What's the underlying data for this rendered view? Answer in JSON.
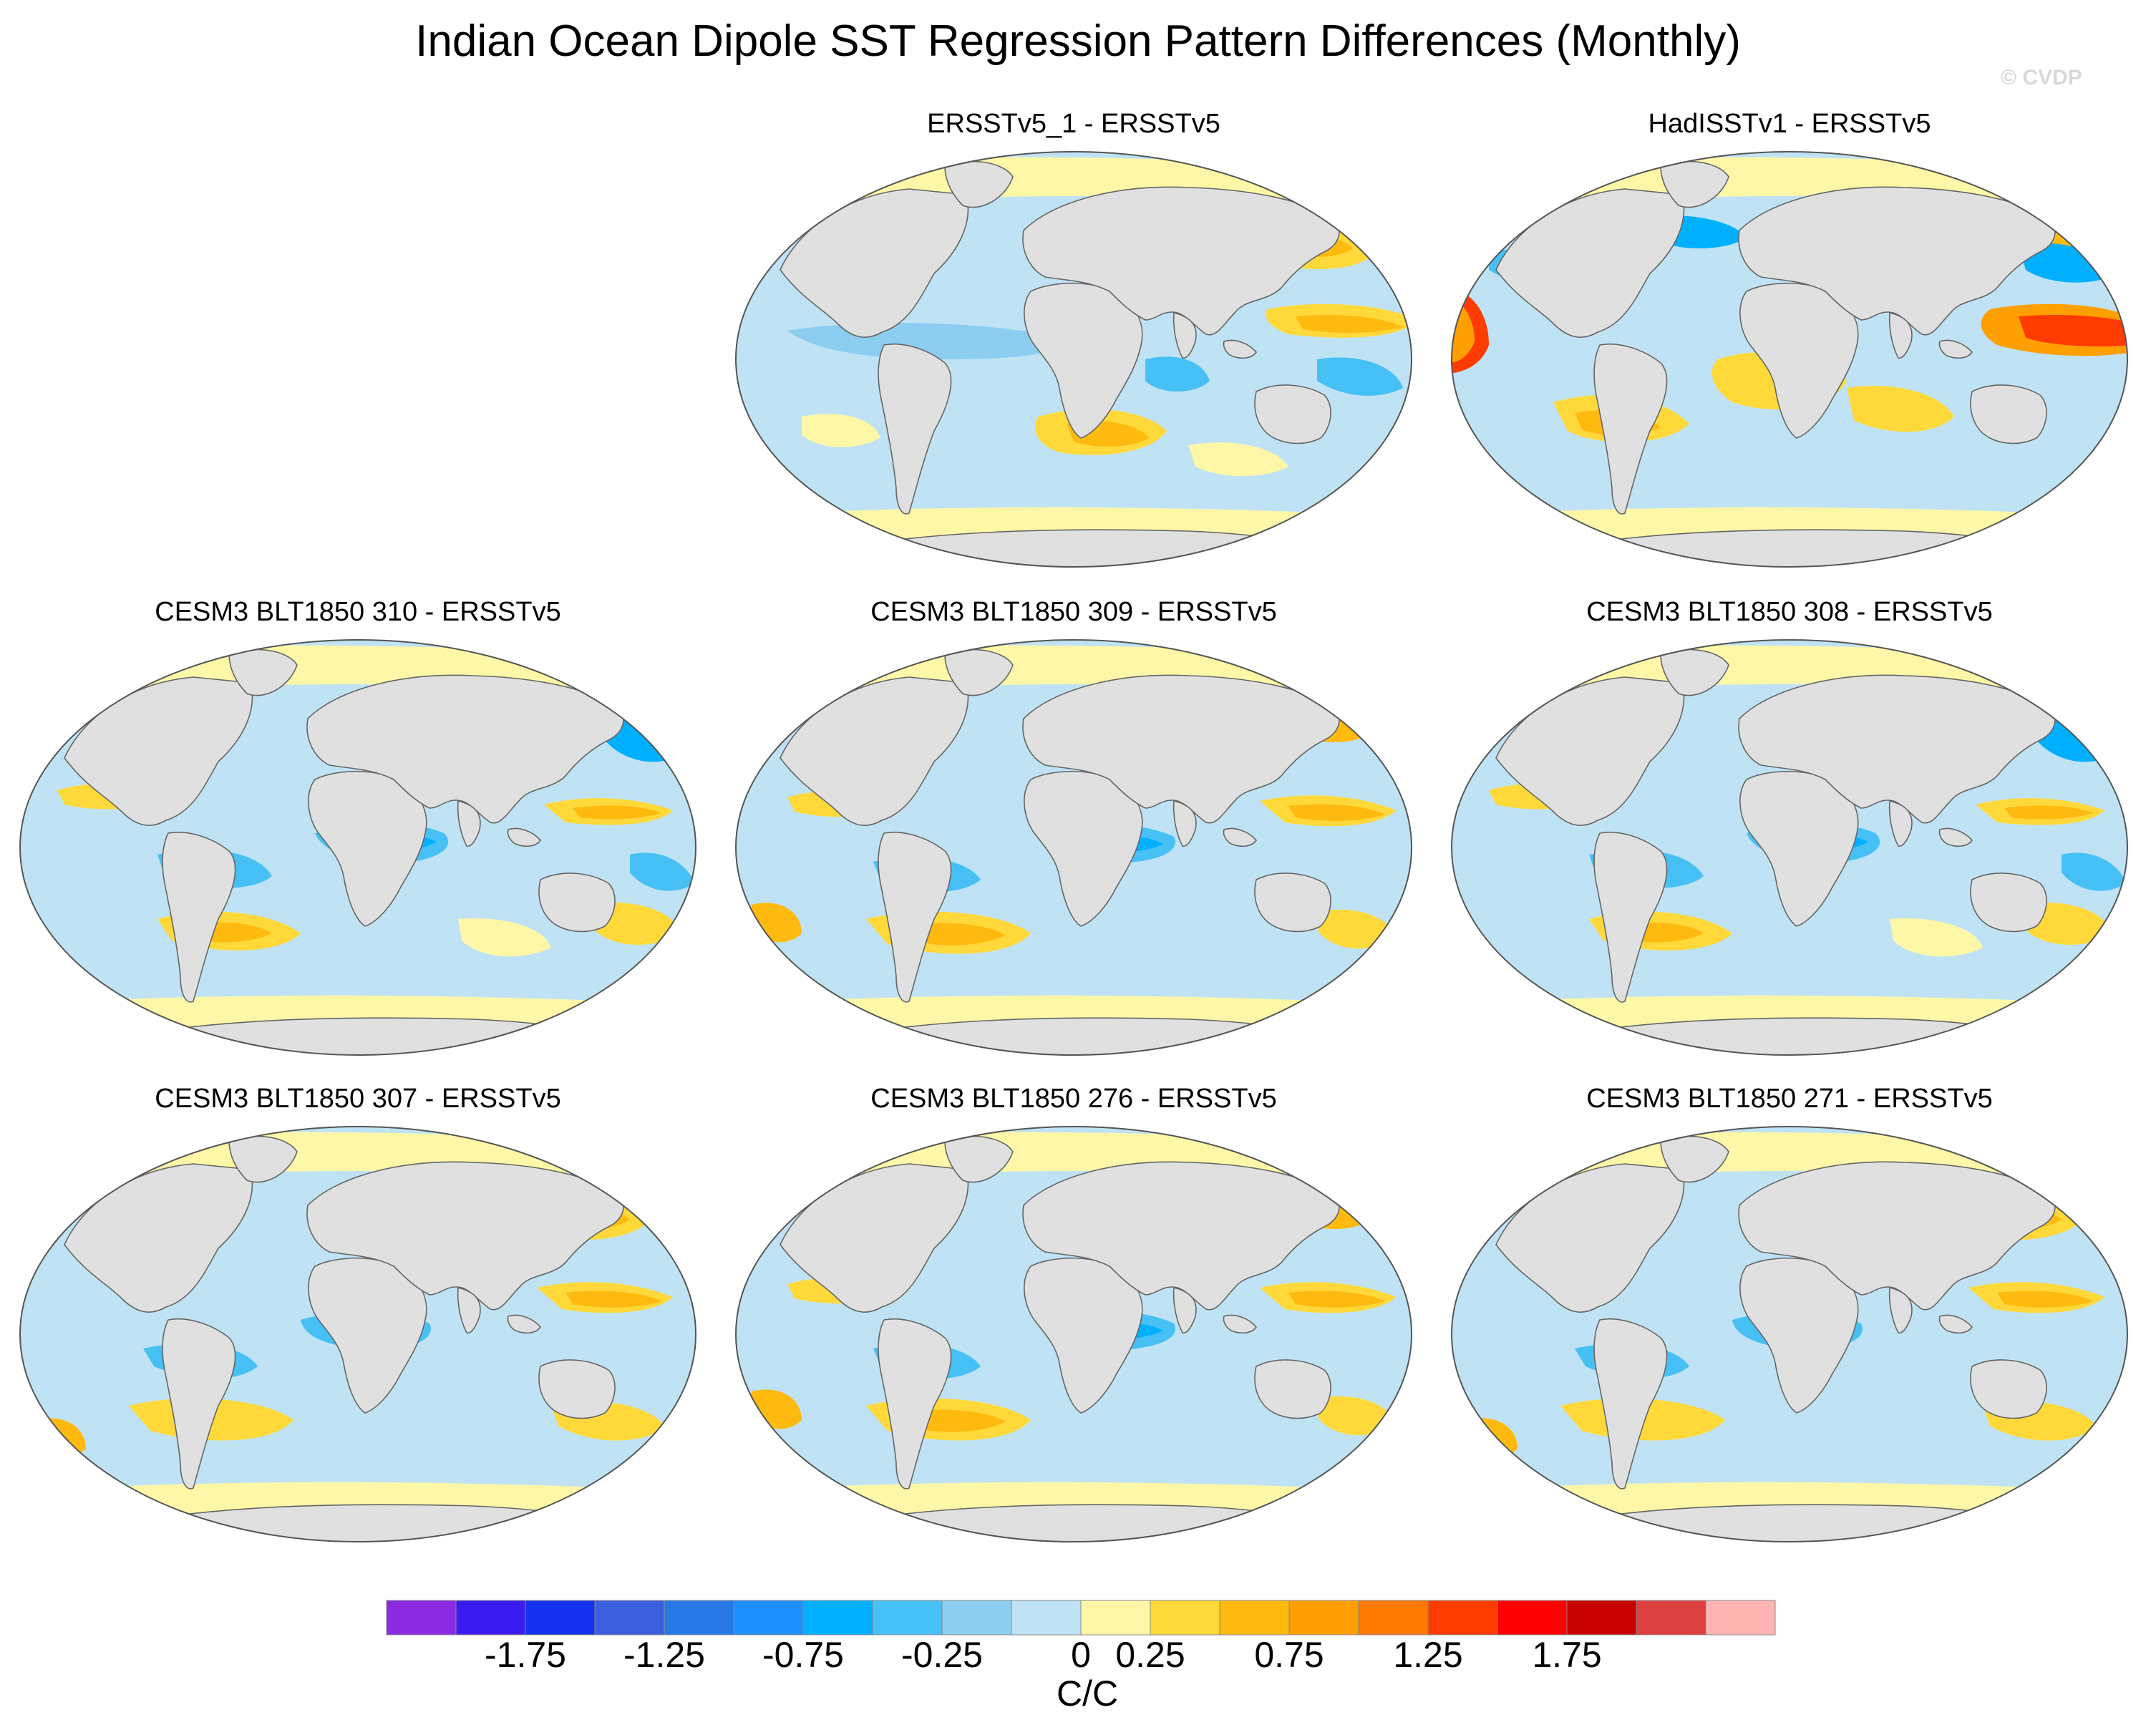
{
  "title": "Indian Ocean Dipole SST Regression Pattern Differences (Monthly)",
  "watermark": "© CVDP",
  "panels": [
    {
      "label": "ERSSTv5_1 - ERSSTv5",
      "pattern": 0
    },
    {
      "label": "HadISSTv1 - ERSSTv5",
      "pattern": 1
    },
    {
      "label": "CESM3 BLT1850 310 - ERSSTv5",
      "pattern": 2
    },
    {
      "label": "CESM3 BLT1850 309 - ERSSTv5",
      "pattern": 3
    },
    {
      "label": "CESM3 BLT1850 308 - ERSSTv5",
      "pattern": 2
    },
    {
      "label": "CESM3 BLT1850 307 - ERSSTv5",
      "pattern": 4
    },
    {
      "label": "CESM3 BLT1850 276 - ERSSTv5",
      "pattern": 3
    },
    {
      "label": "CESM3 BLT1850 271 - ERSSTv5",
      "pattern": 4
    }
  ],
  "colorbar": {
    "units": "C/C",
    "tick_labels": [
      "-1.75",
      "-1.25",
      "-0.75",
      "-0.25",
      "0",
      "0.25",
      "0.75",
      "1.25",
      "1.75"
    ],
    "colors": [
      "#8a2be2",
      "#3b1cf0",
      "#1432f0",
      "#3c5fe0",
      "#2878e8",
      "#1e90ff",
      "#00b0ff",
      "#46c0f5",
      "#8ccdf0",
      "#bfe3f5",
      "#fff7a8",
      "#ffd93a",
      "#ffba10",
      "#ff9f00",
      "#ff7800",
      "#ff3c00",
      "#ff0000",
      "#c80000",
      "#dc4040",
      "#ffb4b4"
    ]
  }
}
